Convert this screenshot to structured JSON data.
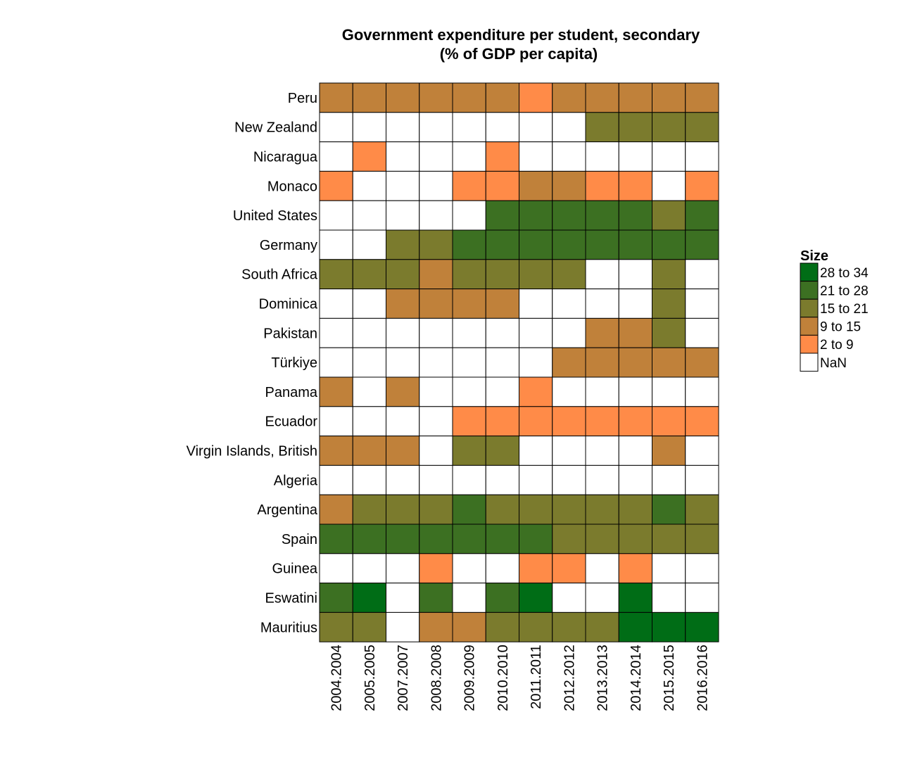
{
  "chart_data": {
    "type": "heatmap",
    "title_line1": "Government expenditure per student, secondary",
    "title_line2": "(% of GDP per capita)",
    "x_categories": [
      "2004.2004",
      "2005.2005",
      "2007.2007",
      "2008.2008",
      "2009.2009",
      "2010.2010",
      "2011.2011",
      "2012.2012",
      "2013.2013",
      "2014.2014",
      "2015.2015",
      "2016.2016"
    ],
    "y_categories": [
      "Peru",
      "New Zealand",
      "Nicaragua",
      "Monaco",
      "United States",
      "Germany",
      "South Africa",
      "Dominica",
      "Pakistan",
      "Türkiye",
      "Panama",
      "Ecuador",
      "Virgin Islands, British",
      "Algeria",
      "Argentina",
      "Spain",
      "Guinea",
      "Eswatini",
      "Mauritius"
    ],
    "bins": [
      {
        "label": "28 to 34",
        "color": "#006d16"
      },
      {
        "label": "21 to 28",
        "color": "#3c7022"
      },
      {
        "label": "15 to 21",
        "color": "#7b7b2d"
      },
      {
        "label": "9 to 15",
        "color": "#c0813a"
      },
      {
        "label": "2 to 9",
        "color": "#ff8b48"
      },
      {
        "label": "NaN",
        "color": "#ffffff"
      }
    ],
    "cells": [
      [
        "9 to 15",
        "9 to 15",
        "9 to 15",
        "9 to 15",
        "9 to 15",
        "9 to 15",
        "2 to 9",
        "9 to 15",
        "9 to 15",
        "9 to 15",
        "9 to 15",
        "9 to 15"
      ],
      [
        "NaN",
        "NaN",
        "NaN",
        "NaN",
        "NaN",
        "NaN",
        "NaN",
        "NaN",
        "15 to 21",
        "15 to 21",
        "15 to 21",
        "15 to 21"
      ],
      [
        "NaN",
        "2 to 9",
        "NaN",
        "NaN",
        "NaN",
        "2 to 9",
        "NaN",
        "NaN",
        "NaN",
        "NaN",
        "NaN",
        "NaN"
      ],
      [
        "2 to 9",
        "NaN",
        "NaN",
        "NaN",
        "2 to 9",
        "2 to 9",
        "9 to 15",
        "9 to 15",
        "2 to 9",
        "2 to 9",
        "NaN",
        "2 to 9"
      ],
      [
        "NaN",
        "NaN",
        "NaN",
        "NaN",
        "NaN",
        "21 to 28",
        "21 to 28",
        "21 to 28",
        "21 to 28",
        "21 to 28",
        "15 to 21",
        "21 to 28"
      ],
      [
        "NaN",
        "NaN",
        "15 to 21",
        "15 to 21",
        "21 to 28",
        "21 to 28",
        "21 to 28",
        "21 to 28",
        "21 to 28",
        "21 to 28",
        "21 to 28",
        "21 to 28"
      ],
      [
        "15 to 21",
        "15 to 21",
        "15 to 21",
        "9 to 15",
        "15 to 21",
        "15 to 21",
        "15 to 21",
        "15 to 21",
        "NaN",
        "NaN",
        "15 to 21",
        "NaN"
      ],
      [
        "NaN",
        "NaN",
        "9 to 15",
        "9 to 15",
        "9 to 15",
        "9 to 15",
        "NaN",
        "NaN",
        "NaN",
        "NaN",
        "15 to 21",
        "NaN"
      ],
      [
        "NaN",
        "NaN",
        "NaN",
        "NaN",
        "NaN",
        "NaN",
        "NaN",
        "NaN",
        "9 to 15",
        "9 to 15",
        "15 to 21",
        "NaN"
      ],
      [
        "NaN",
        "NaN",
        "NaN",
        "NaN",
        "NaN",
        "NaN",
        "NaN",
        "9 to 15",
        "9 to 15",
        "9 to 15",
        "9 to 15",
        "9 to 15"
      ],
      [
        "9 to 15",
        "NaN",
        "9 to 15",
        "NaN",
        "NaN",
        "NaN",
        "2 to 9",
        "NaN",
        "NaN",
        "NaN",
        "NaN",
        "NaN"
      ],
      [
        "NaN",
        "NaN",
        "NaN",
        "NaN",
        "2 to 9",
        "2 to 9",
        "2 to 9",
        "2 to 9",
        "2 to 9",
        "2 to 9",
        "2 to 9",
        "2 to 9"
      ],
      [
        "9 to 15",
        "9 to 15",
        "9 to 15",
        "NaN",
        "15 to 21",
        "15 to 21",
        "NaN",
        "NaN",
        "NaN",
        "NaN",
        "9 to 15",
        "NaN"
      ],
      [
        "NaN",
        "NaN",
        "NaN",
        "NaN",
        "NaN",
        "NaN",
        "NaN",
        "NaN",
        "NaN",
        "NaN",
        "NaN",
        "NaN"
      ],
      [
        "9 to 15",
        "15 to 21",
        "15 to 21",
        "15 to 21",
        "21 to 28",
        "15 to 21",
        "15 to 21",
        "15 to 21",
        "15 to 21",
        "15 to 21",
        "21 to 28",
        "15 to 21"
      ],
      [
        "21 to 28",
        "21 to 28",
        "21 to 28",
        "21 to 28",
        "21 to 28",
        "21 to 28",
        "21 to 28",
        "15 to 21",
        "15 to 21",
        "15 to 21",
        "15 to 21",
        "15 to 21"
      ],
      [
        "NaN",
        "NaN",
        "NaN",
        "2 to 9",
        "NaN",
        "NaN",
        "2 to 9",
        "2 to 9",
        "NaN",
        "2 to 9",
        "NaN",
        "NaN"
      ],
      [
        "21 to 28",
        "28 to 34",
        "NaN",
        "21 to 28",
        "NaN",
        "21 to 28",
        "28 to 34",
        "NaN",
        "NaN",
        "28 to 34",
        "NaN",
        "NaN"
      ],
      [
        "15 to 21",
        "15 to 21",
        "NaN",
        "9 to 15",
        "9 to 15",
        "15 to 21",
        "15 to 21",
        "15 to 21",
        "15 to 21",
        "28 to 34",
        "28 to 34",
        "28 to 34"
      ]
    ],
    "legend": {
      "title": "Size",
      "position": "right"
    },
    "grid": false
  }
}
